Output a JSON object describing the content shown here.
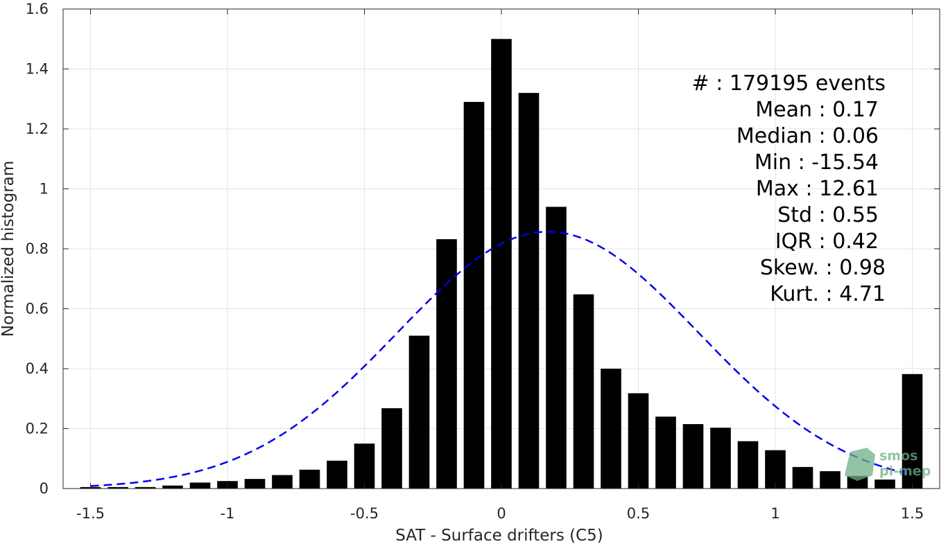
{
  "chart_data": {
    "type": "bar",
    "xlabel": "SAT - Surface drifters (C5)",
    "ylabel": "Normalized histogram",
    "xlim": [
      -1.6,
      1.6
    ],
    "ylim": [
      0,
      1.6
    ],
    "xticks": [
      -1.5,
      -1,
      -0.5,
      0,
      0.5,
      1,
      1.5
    ],
    "xtick_labels": [
      "-1.5",
      "-1",
      "-0.5",
      "0",
      "0.5",
      "1",
      "1.5"
    ],
    "yticks": [
      0,
      0.2,
      0.4,
      0.6,
      0.8,
      1,
      1.2,
      1.4,
      1.6
    ],
    "ytick_labels": [
      "0",
      "0.2",
      "0.4",
      "0.6",
      "0.8",
      "1",
      "1.2",
      "1.4",
      "1.6"
    ],
    "grid": true,
    "bar_color": "#000000",
    "bar_width": 0.075,
    "x": [
      -1.5,
      -1.4,
      -1.3,
      -1.2,
      -1.1,
      -1.0,
      -0.9,
      -0.8,
      -0.7,
      -0.6,
      -0.5,
      -0.4,
      -0.3,
      -0.2,
      -0.1,
      0.0,
      0.1,
      0.2,
      0.3,
      0.4,
      0.5,
      0.6,
      0.7,
      0.8,
      0.9,
      1.0,
      1.1,
      1.2,
      1.3,
      1.4,
      1.5
    ],
    "values": [
      0.005,
      0.005,
      0.005,
      0.01,
      0.02,
      0.025,
      0.032,
      0.045,
      0.063,
      0.093,
      0.15,
      0.268,
      0.51,
      0.832,
      1.29,
      1.5,
      1.32,
      0.94,
      0.648,
      0.4,
      0.318,
      0.24,
      0.215,
      0.203,
      0.158,
      0.128,
      0.072,
      0.058,
      0.042,
      0.03,
      0.382
    ],
    "fit": {
      "type": "gaussian",
      "mean": 0.17,
      "std": 0.55,
      "peak": 0.857,
      "color": "#0000ee",
      "line_style": "dashed",
      "x_range": [
        -1.5,
        1.5
      ]
    }
  },
  "stats": [
    {
      "label": "#  : 179195 events"
    },
    {
      "label": "Mean : 0.17"
    },
    {
      "label": "Median : 0.06"
    },
    {
      "label": "Min : -15.54"
    },
    {
      "label": "Max : 12.61"
    },
    {
      "label": "Std : 0.55"
    },
    {
      "label": "IQR : 0.42"
    },
    {
      "label": "Skew. : 0.98"
    },
    {
      "label": "Kurt. : 4.71"
    }
  ],
  "logo": {
    "line1": "smos",
    "line2": "pi-mep",
    "color": "#6fae88"
  }
}
